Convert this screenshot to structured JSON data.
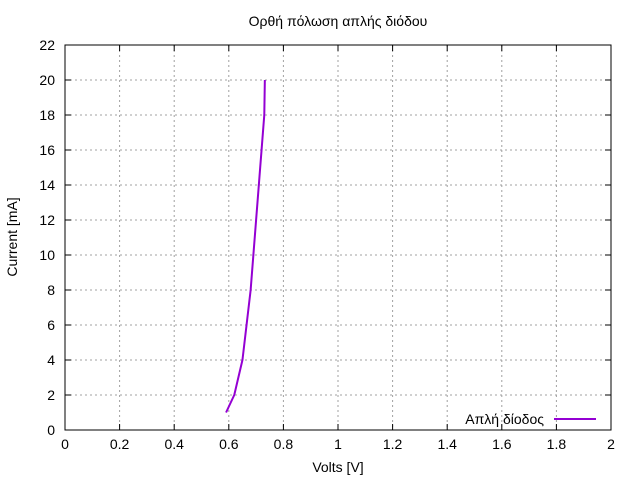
{
  "chart_data": {
    "type": "line",
    "title": "Ορθή πόλωση απλής διόδου",
    "xlabel": "Volts [V]",
    "ylabel": "Current [mA]",
    "xlim": [
      0,
      2
    ],
    "ylim": [
      0,
      22
    ],
    "xticks": [
      "0",
      "0.2",
      "0.4",
      "0.6",
      "0.8",
      "1",
      "1.2",
      "1.4",
      "1.6",
      "1.8",
      "2"
    ],
    "yticks": [
      "0",
      "2",
      "4",
      "6",
      "8",
      "10",
      "12",
      "14",
      "16",
      "18",
      "20",
      "22"
    ],
    "grid": true,
    "legend_position": "bottom-right",
    "series": [
      {
        "name": "Απλή δίοδος",
        "color": "#9400d3",
        "x": [
          0.59,
          0.605,
          0.62,
          0.635,
          0.65,
          0.665,
          0.68,
          0.69,
          0.7,
          0.71,
          0.715,
          0.72,
          0.725,
          0.73,
          0.732
        ],
        "y": [
          1,
          1.5,
          2,
          3,
          4,
          6,
          8,
          10,
          12,
          14,
          15,
          16,
          17,
          18,
          20
        ]
      }
    ]
  }
}
